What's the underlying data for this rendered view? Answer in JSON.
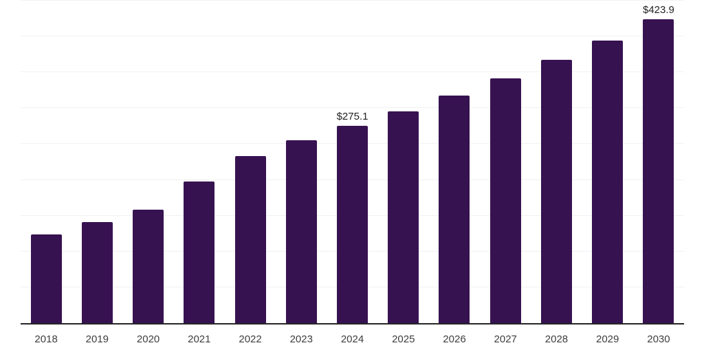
{
  "chart_data": {
    "type": "bar",
    "title": "",
    "xlabel": "",
    "ylabel": "",
    "categories": [
      "2018",
      "2019",
      "2020",
      "2021",
      "2022",
      "2023",
      "2024",
      "2025",
      "2026",
      "2027",
      "2028",
      "2029",
      "2030"
    ],
    "values": [
      123.5,
      141.0,
      158.0,
      197.4,
      233.5,
      255.0,
      275.1,
      295.7,
      317.9,
      341.6,
      367.1,
      394.6,
      423.9
    ],
    "value_labels": [
      "",
      "",
      "",
      "",
      "",
      "",
      "$275.1",
      "",
      "",
      "",
      "",
      "",
      "$423.9"
    ],
    "ylim": [
      0,
      450
    ],
    "gridline_step": 50,
    "grid": true,
    "legend": "none",
    "colors": {
      "bar": "#371251",
      "axis_line": "#262626",
      "gridline": "#f1f1f3",
      "tick_label": "#3d3d3d",
      "value_label": "#1f1f1f",
      "background": "#ffffff"
    }
  }
}
